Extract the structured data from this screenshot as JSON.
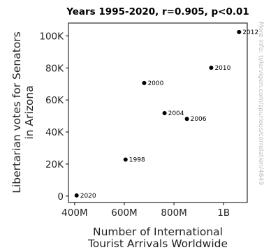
{
  "chart_data": {
    "type": "scatter",
    "title": "Years 1995-2020, r=0.905, p<0.01",
    "xlabel_lines": [
      "Number of International",
      "Tourist Arrivals Worldwide"
    ],
    "ylabel_lines": [
      "Libertarian votes for Senators",
      "in Arizona"
    ],
    "x_ticks": [
      {
        "value": 400000000,
        "label": "400M"
      },
      {
        "value": 600000000,
        "label": "600M"
      },
      {
        "value": 800000000,
        "label": "800M"
      },
      {
        "value": 1000000000,
        "label": "1B"
      }
    ],
    "y_ticks": [
      {
        "value": 0,
        "label": "0"
      },
      {
        "value": 20000,
        "label": "20K"
      },
      {
        "value": 40000,
        "label": "40K"
      },
      {
        "value": 60000,
        "label": "60K"
      },
      {
        "value": 80000,
        "label": "80K"
      },
      {
        "value": 100000,
        "label": "100K"
      }
    ],
    "xlim": [
      375000000,
      1095000000
    ],
    "ylim": [
      -4000,
      108000
    ],
    "grid": false,
    "marker_color": "#000000",
    "points": [
      {
        "label": "1998",
        "x": 605000000,
        "y": 22800
      },
      {
        "label": "2000",
        "x": 680000000,
        "y": 70600
      },
      {
        "label": "2004",
        "x": 762000000,
        "y": 51800
      },
      {
        "label": "2006",
        "x": 852000000,
        "y": 48200
      },
      {
        "label": "2010",
        "x": 950000000,
        "y": 80100
      },
      {
        "label": "2012",
        "x": 1062000000,
        "y": 102400
      },
      {
        "label": "2020",
        "x": 408000000,
        "y": 400
      }
    ]
  },
  "watermark": "More info: tylervigen.com/spurious/correlation/4649"
}
